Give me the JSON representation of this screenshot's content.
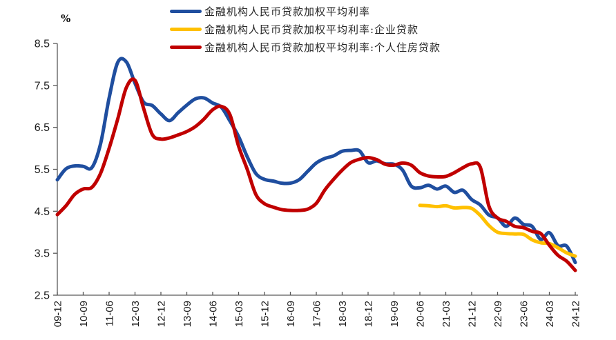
{
  "chart_data": {
    "type": "line",
    "title": "",
    "unit_label": "%",
    "grid": false,
    "legend_position": "top-center",
    "ylim": [
      2.5,
      8.5
    ],
    "ytick_labels": [
      "2.5",
      "3.5",
      "4.5",
      "5.5",
      "6.5",
      "7.5",
      "8.5"
    ],
    "x_tick_every": 3,
    "x_tick_labels": [
      "09-12",
      "10-09",
      "11-06",
      "12-03",
      "12-12",
      "13-09",
      "14-06",
      "15-03",
      "15-12",
      "16-09",
      "17-06",
      "18-03",
      "18-12",
      "19-09",
      "20-06",
      "21-03",
      "21-12",
      "22-09",
      "23-06",
      "24-03",
      "24-12"
    ],
    "axis_color": "#595959",
    "text_color": "#1a1a1a",
    "categories": [
      "09-12",
      "10-03",
      "10-06",
      "10-09",
      "10-12",
      "11-03",
      "11-06",
      "11-09",
      "11-12",
      "12-03",
      "12-06",
      "12-09",
      "12-12",
      "13-03",
      "13-06",
      "13-09",
      "13-12",
      "14-03",
      "14-06",
      "14-09",
      "14-12",
      "15-03",
      "15-06",
      "15-09",
      "15-12",
      "16-03",
      "16-06",
      "16-09",
      "16-12",
      "17-03",
      "17-06",
      "17-09",
      "17-12",
      "18-03",
      "18-06",
      "18-09",
      "18-12",
      "19-03",
      "19-06",
      "19-09",
      "19-12",
      "20-03",
      "20-06",
      "20-09",
      "20-12",
      "21-03",
      "21-06",
      "21-09",
      "21-12",
      "22-03",
      "22-06",
      "22-09",
      "22-12",
      "23-03",
      "23-06",
      "23-09",
      "23-12",
      "24-03",
      "24-06",
      "24-09",
      "24-12"
    ],
    "series": [
      {
        "name": "金融机构人民币贷款加权平均利率",
        "color": "#1F4E9F",
        "values": [
          5.25,
          5.51,
          5.58,
          5.57,
          5.54,
          6.1,
          7.2,
          8.05,
          8.06,
          7.55,
          7.1,
          7.02,
          6.82,
          6.66,
          6.85,
          7.03,
          7.18,
          7.2,
          7.08,
          6.98,
          6.65,
          6.28,
          5.8,
          5.4,
          5.26,
          5.22,
          5.17,
          5.17,
          5.25,
          5.45,
          5.65,
          5.76,
          5.82,
          5.93,
          5.95,
          5.94,
          5.66,
          5.7,
          5.63,
          5.62,
          5.48,
          5.1,
          5.06,
          5.12,
          5.03,
          5.1,
          4.95,
          5.0,
          4.78,
          4.65,
          4.41,
          4.34,
          4.14,
          4.34,
          4.19,
          4.14,
          3.83,
          3.99,
          3.68,
          3.67,
          3.28
        ]
      },
      {
        "name": "金融机构人民币贷款加权平均利率:企业贷款",
        "color": "#FFC000",
        "values": [
          null,
          null,
          null,
          null,
          null,
          null,
          null,
          null,
          null,
          null,
          null,
          null,
          null,
          null,
          null,
          null,
          null,
          null,
          null,
          null,
          null,
          null,
          null,
          null,
          null,
          null,
          null,
          null,
          null,
          null,
          null,
          null,
          null,
          null,
          null,
          null,
          null,
          null,
          null,
          null,
          null,
          null,
          4.64,
          4.63,
          4.61,
          4.63,
          4.58,
          4.59,
          4.57,
          4.4,
          4.16,
          4.0,
          3.97,
          3.96,
          3.95,
          3.82,
          3.75,
          3.73,
          3.63,
          3.51,
          3.43
        ]
      },
      {
        "name": "金融机构人民币贷款加权平均利率:个人住房贷款",
        "color": "#C00000",
        "values": [
          4.42,
          4.63,
          4.9,
          5.03,
          5.07,
          5.4,
          6.0,
          6.7,
          7.45,
          7.62,
          6.95,
          6.33,
          6.22,
          6.25,
          6.32,
          6.4,
          6.52,
          6.7,
          6.92,
          7.0,
          6.8,
          6.05,
          5.5,
          4.9,
          4.68,
          4.6,
          4.54,
          4.52,
          4.52,
          4.55,
          4.69,
          5.01,
          5.26,
          5.48,
          5.66,
          5.74,
          5.78,
          5.73,
          5.62,
          5.6,
          5.65,
          5.6,
          5.42,
          5.34,
          5.32,
          5.33,
          5.42,
          5.54,
          5.63,
          5.55,
          4.62,
          4.34,
          4.26,
          4.14,
          4.11,
          4.02,
          3.97,
          3.69,
          3.45,
          3.31,
          3.09
        ]
      }
    ]
  }
}
